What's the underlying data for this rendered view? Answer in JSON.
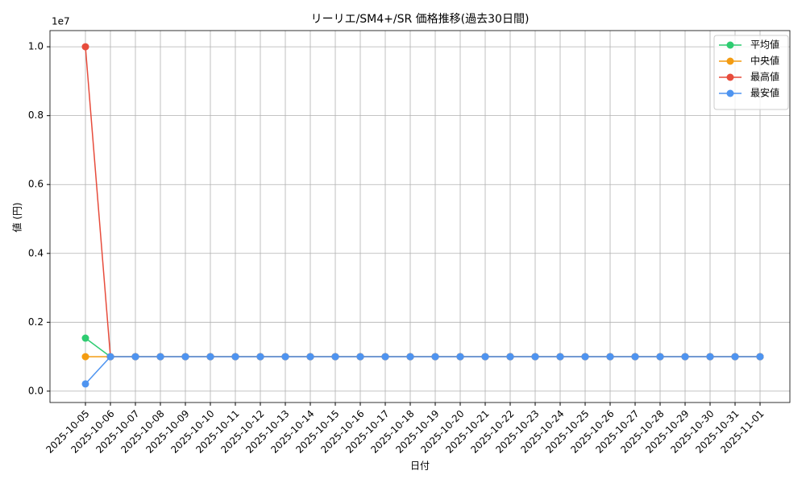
{
  "chart_data": {
    "type": "line",
    "title": "リーリエ/SM4+/SR 価格推移(過去30日間)",
    "x_label": "日付",
    "y_label": "値 (円)",
    "y_offset_label": "1e7",
    "categories": [
      "2025-10-05",
      "2025-10-06",
      "2025-10-07",
      "2025-10-08",
      "2025-10-09",
      "2025-10-10",
      "2025-10-11",
      "2025-10-12",
      "2025-10-13",
      "2025-10-14",
      "2025-10-15",
      "2025-10-16",
      "2025-10-17",
      "2025-10-18",
      "2025-10-19",
      "2025-10-20",
      "2025-10-21",
      "2025-10-22",
      "2025-10-23",
      "2025-10-24",
      "2025-10-25",
      "2025-10-26",
      "2025-10-27",
      "2025-10-28",
      "2025-10-29",
      "2025-10-30",
      "2025-10-31",
      "2025-11-01"
    ],
    "series": [
      {
        "name": "平均値",
        "color": "#2ecc71",
        "values": [
          1540000,
          1000000,
          1000000,
          1000000,
          1000000,
          1000000,
          1000000,
          1000000,
          1000000,
          1000000,
          1000000,
          1000000,
          1000000,
          1000000,
          1000000,
          1000000,
          1000000,
          1000000,
          1000000,
          1000000,
          1000000,
          1000000,
          1000000,
          1000000,
          1000000,
          1000000,
          1000000,
          1000000
        ]
      },
      {
        "name": "中央値",
        "color": "#f39c12",
        "values": [
          1000000,
          1000000,
          1000000,
          1000000,
          1000000,
          1000000,
          1000000,
          1000000,
          1000000,
          1000000,
          1000000,
          1000000,
          1000000,
          1000000,
          1000000,
          1000000,
          1000000,
          1000000,
          1000000,
          1000000,
          1000000,
          1000000,
          1000000,
          1000000,
          1000000,
          1000000,
          1000000,
          1000000
        ]
      },
      {
        "name": "最高値",
        "color": "#e74c3c",
        "values": [
          10000000,
          1000000,
          1000000,
          1000000,
          1000000,
          1000000,
          1000000,
          1000000,
          1000000,
          1000000,
          1000000,
          1000000,
          1000000,
          1000000,
          1000000,
          1000000,
          1000000,
          1000000,
          1000000,
          1000000,
          1000000,
          1000000,
          1000000,
          1000000,
          1000000,
          1000000,
          1000000,
          1000000
        ]
      },
      {
        "name": "最安値",
        "color": "#4e94f0",
        "values": [
          210000,
          1000000,
          1000000,
          1000000,
          1000000,
          1000000,
          1000000,
          1000000,
          1000000,
          1000000,
          1000000,
          1000000,
          1000000,
          1000000,
          1000000,
          1000000,
          1000000,
          1000000,
          1000000,
          1000000,
          1000000,
          1000000,
          1000000,
          1000000,
          1000000,
          1000000,
          1000000,
          1000000
        ]
      }
    ],
    "ylim": [
      -330000,
      10470000
    ],
    "yticks": [
      {
        "value": 0,
        "label": "0.0"
      },
      {
        "value": 2000000,
        "label": "0.2"
      },
      {
        "value": 4000000,
        "label": "0.4"
      },
      {
        "value": 6000000,
        "label": "0.6"
      },
      {
        "value": 8000000,
        "label": "0.8"
      },
      {
        "value": 10000000,
        "label": "1.0"
      }
    ],
    "grid": true,
    "legend": "upper right"
  }
}
